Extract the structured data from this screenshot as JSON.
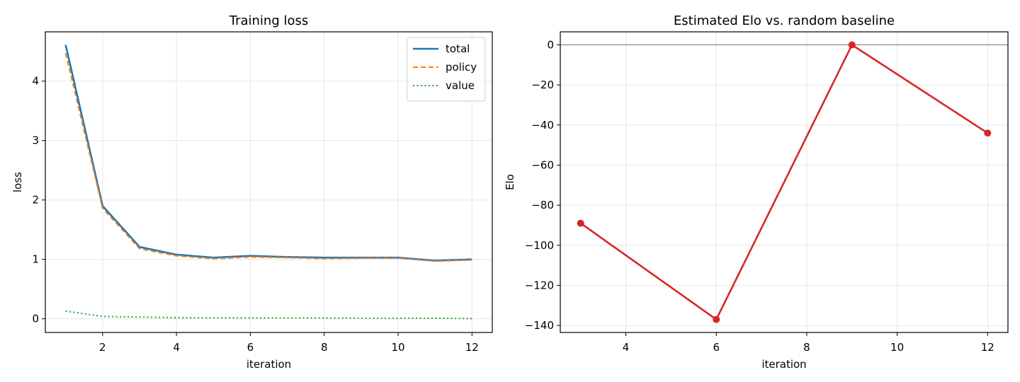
{
  "chart_data": [
    {
      "type": "line",
      "title": "Training loss",
      "xlabel": "iteration",
      "ylabel": "loss",
      "xlim": [
        0.45,
        12.55
      ],
      "ylim": [
        -0.23,
        4.83
      ],
      "xticks": [
        2,
        4,
        6,
        8,
        10,
        12
      ],
      "yticks": [
        0,
        1,
        2,
        3,
        4
      ],
      "grid": true,
      "legend_position": "top-right",
      "x": [
        1,
        2,
        3,
        4,
        5,
        6,
        7,
        8,
        9,
        10,
        11,
        12
      ],
      "series": [
        {
          "name": "total",
          "color": "#1f77b4",
          "style": "solid",
          "values": [
            4.61,
            1.9,
            1.21,
            1.08,
            1.03,
            1.06,
            1.04,
            1.03,
            1.03,
            1.03,
            0.98,
            1.0
          ]
        },
        {
          "name": "policy",
          "color": "#ff7f0e",
          "style": "dashed",
          "values": [
            4.47,
            1.86,
            1.18,
            1.06,
            1.01,
            1.04,
            1.03,
            1.01,
            1.02,
            1.02,
            0.97,
            0.99
          ]
        },
        {
          "name": "value",
          "color": "#2ca02c",
          "style": "dotted",
          "values": [
            0.13,
            0.04,
            0.03,
            0.02,
            0.015,
            0.015,
            0.015,
            0.015,
            0.01,
            0.01,
            0.01,
            0.005
          ]
        }
      ]
    },
    {
      "type": "line",
      "title": "Estimated Elo vs. random baseline",
      "xlabel": "iteration",
      "ylabel": "Elo",
      "xlim": [
        2.55,
        12.45
      ],
      "ylim": [
        -143.5,
        6.5
      ],
      "xticks": [
        4,
        6,
        8,
        10,
        12
      ],
      "yticks": [
        0,
        -20,
        -40,
        -60,
        -80,
        -100,
        -120,
        -140
      ],
      "grid": true,
      "reference_line": {
        "y": 0,
        "color": "#999999"
      },
      "x": [
        3,
        6,
        9,
        12
      ],
      "series": [
        {
          "color": "#d62728",
          "style": "solid",
          "markers": true,
          "values": [
            -89,
            -137,
            0,
            -44
          ]
        }
      ]
    }
  ]
}
